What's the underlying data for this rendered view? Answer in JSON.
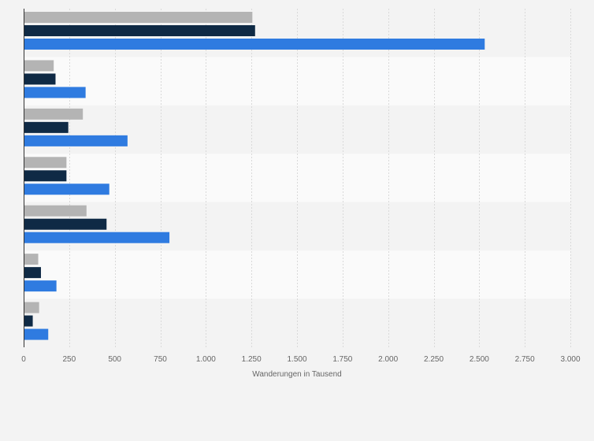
{
  "chart_data": {
    "type": "bar",
    "orientation": "horizontal",
    "title": "",
    "xlabel": "Wanderungen in Tausend",
    "ylabel": "",
    "xlim": [
      0,
      3000
    ],
    "x_ticks": [
      0,
      250,
      500,
      750,
      1000,
      1250,
      1500,
      1750,
      2000,
      2250,
      2500,
      2750,
      3000
    ],
    "x_tick_labels": [
      "0",
      "250",
      "500",
      "750",
      "1.000",
      "1.250",
      "1.500",
      "1.750",
      "2.000",
      "2.250",
      "2.500",
      "2.750",
      "3.000"
    ],
    "grid": true,
    "legend": "none",
    "categories": [
      "",
      "",
      "",
      "",
      "",
      "",
      ""
    ],
    "series": [
      {
        "color": "#b4b4b4",
        "values": [
          1255,
          165,
          325,
          235,
          345,
          80,
          85
        ]
      },
      {
        "color": "#0f2a45",
        "values": [
          1270,
          175,
          245,
          235,
          455,
          95,
          50
        ]
      },
      {
        "color": "#2f7be0",
        "values": [
          2530,
          340,
          570,
          470,
          800,
          180,
          135
        ]
      }
    ]
  },
  "colors": {
    "background": "#f3f3f3",
    "band_even": "#f3f3f3",
    "band_odd": "#fafafa",
    "gridline": "#d9d9d9",
    "axis": "#333333",
    "text": "#666666"
  }
}
